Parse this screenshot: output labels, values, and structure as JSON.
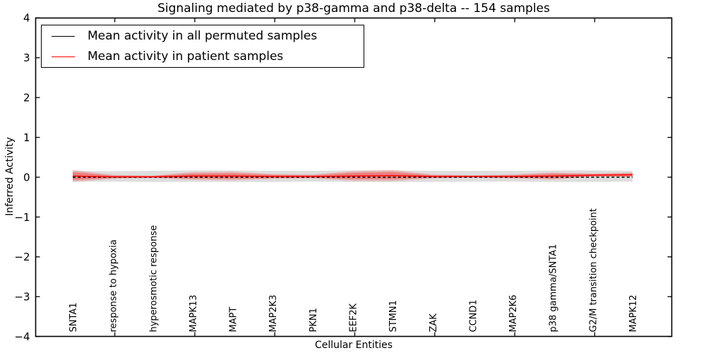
{
  "figure": {
    "title": "Signaling mediated by p38-gamma and p38-delta -- 154 samples",
    "xlabel": "Cellular Entities",
    "ylabel": "Inferred Activity"
  },
  "legend": {
    "entries": [
      {
        "label": "Mean activity in all permuted samples",
        "color": "#000000"
      },
      {
        "label": "Mean activity in patient samples",
        "color": "#ff0000"
      }
    ]
  },
  "chart_data": {
    "type": "line",
    "title": "Signaling mediated by p38-gamma and p38-delta -- 154 samples",
    "xlabel": "Cellular Entities",
    "ylabel": "Inferred Activity",
    "ylim": [
      -4,
      4
    ],
    "ytick_values": [
      4,
      3,
      2,
      1,
      0,
      -1,
      -2,
      -3,
      -4
    ],
    "ytick_labels": [
      "4",
      "3",
      "2",
      "1",
      "0",
      "−1",
      "−2",
      "−3",
      "−4"
    ],
    "grid": false,
    "legend_position": "upper left",
    "categories": [
      "SNTA1",
      "response to hypoxia",
      "hyperosmotic response",
      "MAPK13",
      "MAPT",
      "MAP2K3",
      "PKN1",
      "EEF2K",
      "STMN1",
      "ZAK",
      "CCND1",
      "MAP2K6",
      "p38 gamma/SNTA1",
      "G2/M transition checkpoint",
      "MAPK12"
    ],
    "xtick_mark_indices": [
      1,
      3,
      5,
      7,
      9,
      11,
      13
    ],
    "series": [
      {
        "name": "Mean activity in all permuted samples",
        "color": "#000000",
        "style": "dashed",
        "values": [
          0,
          0,
          0,
          0,
          0,
          0,
          0,
          0,
          0,
          0,
          0,
          0,
          0,
          0,
          0
        ]
      },
      {
        "name": "Mean activity in patient samples",
        "color": "#ff0000",
        "style": "solid",
        "values": [
          0.03,
          0.01,
          0.01,
          0.03,
          0.03,
          0.02,
          0.02,
          0.03,
          0.04,
          0.02,
          0.02,
          0.02,
          0.03,
          0.05,
          0.06
        ]
      }
    ],
    "bands": [
      {
        "name": "permuted-samples-range",
        "color": "rgba(0,0,0,0.13)",
        "upper": [
          0.16,
          0.15,
          0.16,
          0.17,
          0.17,
          0.16,
          0.16,
          0.17,
          0.17,
          0.16,
          0.16,
          0.16,
          0.17,
          0.17,
          0.16
        ],
        "lower": [
          -0.11,
          -0.11,
          -0.12,
          -0.12,
          -0.12,
          -0.12,
          -0.11,
          -0.12,
          -0.12,
          -0.12,
          -0.11,
          -0.11,
          -0.12,
          -0.12,
          -0.11
        ]
      },
      {
        "name": "patient-samples-outer-range",
        "color": "rgba(255,0,0,0.18)",
        "upper": [
          0.18,
          0.06,
          0.04,
          0.13,
          0.14,
          0.08,
          0.07,
          0.15,
          0.18,
          0.07,
          0.05,
          0.07,
          0.12,
          0.09,
          0.11
        ],
        "lower": [
          -0.12,
          -0.04,
          -0.02,
          -0.07,
          -0.08,
          -0.04,
          -0.03,
          -0.09,
          -0.1,
          -0.03,
          -0.01,
          -0.03,
          -0.06,
          0.01,
          0.01
        ]
      },
      {
        "name": "patient-samples-inner-range",
        "color": "rgba(255,0,0,0.30)",
        "upper": [
          0.13,
          0.04,
          0.03,
          0.09,
          0.1,
          0.06,
          0.05,
          0.11,
          0.13,
          0.05,
          0.04,
          0.05,
          0.09,
          0.08,
          0.1
        ],
        "lower": [
          -0.07,
          -0.02,
          -0.01,
          -0.03,
          -0.04,
          -0.02,
          -0.01,
          -0.05,
          -0.05,
          -0.01,
          0.0,
          -0.01,
          -0.03,
          0.02,
          0.02
        ]
      }
    ]
  }
}
